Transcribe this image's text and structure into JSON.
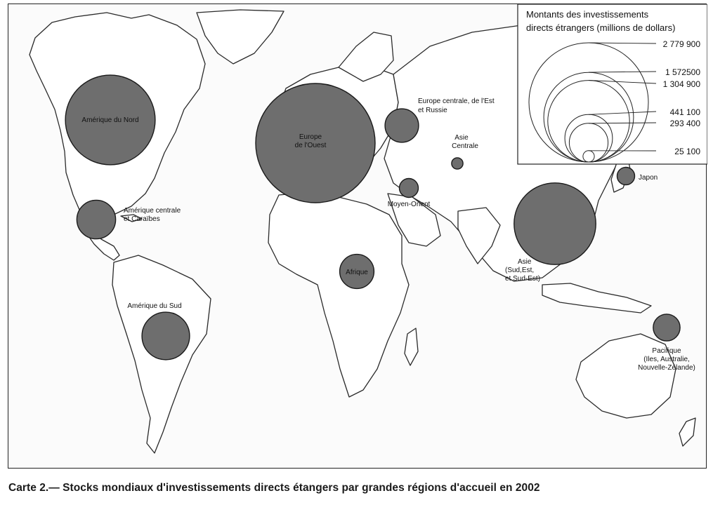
{
  "legend": {
    "title_line1": "Montants des investissements",
    "title_line2": "directs étrangers (millions de dollars)",
    "values": [
      {
        "label": "2 779 900",
        "value": 2779900
      },
      {
        "label": "1 572500",
        "value": 1572500
      },
      {
        "label": "1 304 900",
        "value": 1304900
      },
      {
        "label": "441 100",
        "value": 441100
      },
      {
        "label": "293 400",
        "value": 293400
      },
      {
        "label": "25 100",
        "value": 25100
      }
    ]
  },
  "regions": [
    {
      "id": "amerique-du-nord",
      "lines": [
        "Amérique du Nord"
      ],
      "value": 1572500
    },
    {
      "id": "europe-ouest",
      "lines": [
        "Europe",
        "de l'Ouest"
      ],
      "value": 2779900
    },
    {
      "id": "europe-centrale",
      "lines": [
        "Europe centrale, de l'Est",
        "et Russie"
      ],
      "value": 220000
    },
    {
      "id": "asie-centrale",
      "lines": [
        "Asie",
        "Centrale"
      ],
      "value": 25100
    },
    {
      "id": "japon",
      "lines": [
        "Japon"
      ],
      "value": 60000
    },
    {
      "id": "moyen-orient",
      "lines": [
        "Moyen-Orient"
      ],
      "value": 70000
    },
    {
      "id": "amerique-centrale",
      "lines": [
        "Amérique centrale",
        "et Caraïbes"
      ],
      "value": 293400
    },
    {
      "id": "afrique",
      "lines": [
        "Afrique"
      ],
      "value": 230000
    },
    {
      "id": "asie-sud-est",
      "lines": [
        "Asie",
        "(Sud,Est,",
        "et Sud-Est)"
      ],
      "value": 1304900
    },
    {
      "id": "amerique-du-sud",
      "lines": [
        "Amérique du Sud"
      ],
      "value": 441100
    },
    {
      "id": "pacifique",
      "lines": [
        "Pacifique",
        "(Iles, Australie,",
        "Nouvelle-Zélande)"
      ],
      "value": 140000
    }
  ],
  "caption": "Carte 2.— Stocks mondiaux d'investissements directs étangers par grandes régions d'accueil en 2002",
  "colors": {
    "bubble_fill": "#6e6e6e",
    "bubble_stroke": "#1a1a1a",
    "land_stroke": "#2a2a2a"
  }
}
